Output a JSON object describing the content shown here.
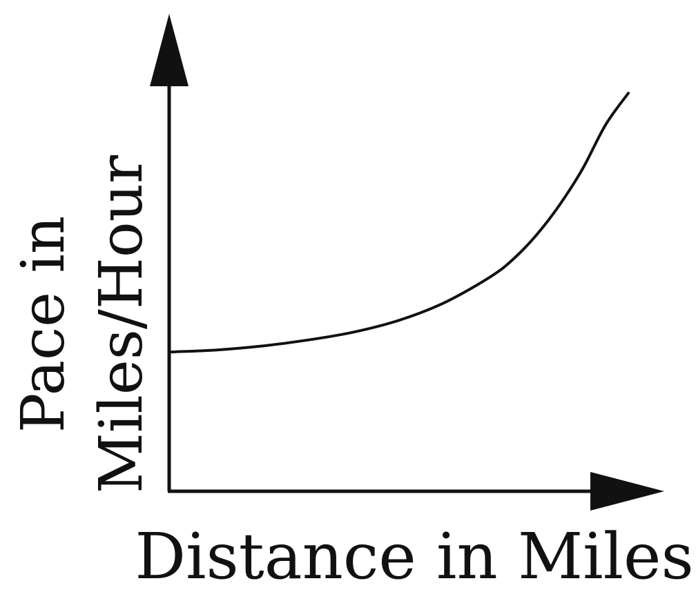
{
  "chart_data": {
    "type": "line",
    "xlabel": "Distance in Miles",
    "ylabel_lines": [
      "Pace in",
      "Miles/Hour"
    ],
    "x_ticks": [],
    "y_ticks": [],
    "grid": false,
    "legend": "none",
    "xlim": [
      0,
      1
    ],
    "ylim": [
      0,
      1
    ],
    "series": [
      {
        "x": [
          0,
          0.1,
          0.2,
          0.3,
          0.4,
          0.5,
          0.6,
          0.7,
          0.75,
          0.8,
          0.85,
          0.9,
          0.95,
          1.0
        ],
        "y": [
          0.35,
          0.355,
          0.365,
          0.38,
          0.4,
          0.43,
          0.475,
          0.54,
          0.585,
          0.645,
          0.72,
          0.81,
          0.92,
          1.0
        ]
      }
    ]
  }
}
